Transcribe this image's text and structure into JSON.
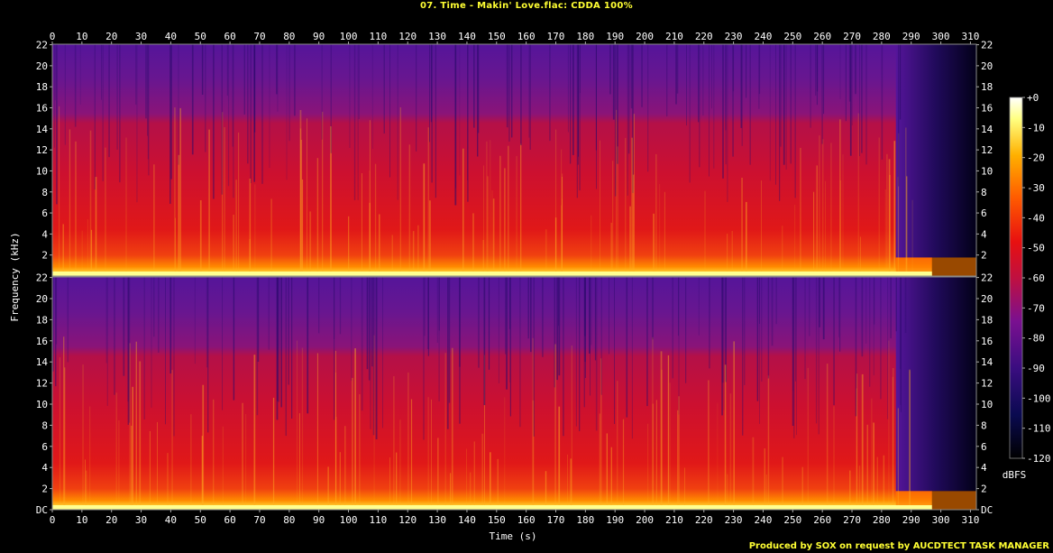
{
  "title": "07. Time - Makin' Love.flac: CDDA 100%",
  "footer": "Produced by SOX on request by AUCDTECT TASK MANAGER",
  "colors": {
    "background": "#000000",
    "text": "#ffffff",
    "title": "#ffff33",
    "axis": "#888888"
  },
  "chart_data": {
    "type": "heatmap",
    "subtype": "spectrogram",
    "channels": 2,
    "xlabel": "Time (s)",
    "ylabel": "Frequency (kHz)",
    "colorbar_label": "dBFS",
    "xlim": [
      0,
      312
    ],
    "ylim": [
      0,
      22.05
    ],
    "x_ticks": [
      0,
      10,
      20,
      30,
      40,
      50,
      60,
      70,
      80,
      90,
      100,
      110,
      120,
      130,
      140,
      150,
      160,
      170,
      180,
      190,
      200,
      210,
      220,
      230,
      240,
      250,
      260,
      270,
      280,
      290,
      300,
      310
    ],
    "y_ticks": [
      "DC",
      "2",
      "4",
      "6",
      "8",
      "10",
      "12",
      "14",
      "16",
      "18",
      "20",
      "22"
    ],
    "y_ticks_upper_top": [
      "2",
      "4",
      "6",
      "8",
      "10",
      "12",
      "14",
      "16",
      "18",
      "20",
      "22"
    ],
    "colorbar_ticks": [
      "+0",
      "-10",
      "-20",
      "-30",
      "-40",
      "-50",
      "-60",
      "-70",
      "-80",
      "-90",
      "-100",
      "-110",
      "-120"
    ],
    "colorbar_range": [
      -120,
      0
    ],
    "track_end_s": 297,
    "level_profile_db": [
      {
        "freq_khz": 0.5,
        "level": -15
      },
      {
        "freq_khz": 2,
        "level": -30
      },
      {
        "freq_khz": 4,
        "level": -40
      },
      {
        "freq_khz": 8,
        "level": -50
      },
      {
        "freq_khz": 14,
        "level": -58
      },
      {
        "freq_khz": 16,
        "level": -72
      },
      {
        "freq_khz": 22,
        "level": -82
      }
    ]
  }
}
